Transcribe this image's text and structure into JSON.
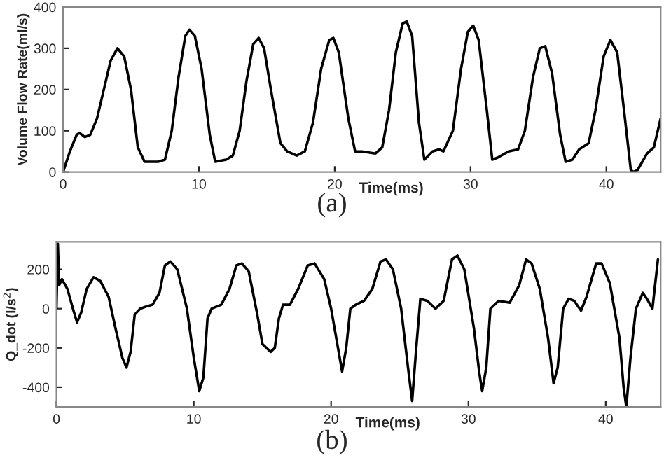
{
  "chart_data": [
    {
      "type": "line",
      "xlabel": "Time(ms)",
      "ylabel": "Volume Flow Rate(ml/s)",
      "xlim": [
        0,
        44
      ],
      "ylim": [
        0,
        400
      ],
      "xticks": [
        0,
        10,
        20,
        30,
        40
      ],
      "yticks": [
        0,
        100,
        200,
        300,
        400
      ],
      "grid": false,
      "legend": false,
      "annotations": [
        "(a)"
      ],
      "series": [
        {
          "color": "#000000",
          "x": [
            0,
            0.5,
            1,
            1.2,
            1.6,
            2,
            2.5,
            3,
            3.5,
            4,
            4.5,
            5,
            5.5,
            6,
            7,
            7.5,
            8,
            8.5,
            9,
            9.3,
            9.7,
            10.2,
            10.8,
            11.2,
            12,
            12.5,
            13,
            13.5,
            14,
            14.4,
            14.8,
            15.3,
            16,
            16.5,
            17.2,
            17.8,
            18.4,
            19,
            19.6,
            19.9,
            20.3,
            21,
            21.5,
            22,
            23,
            23.5,
            24,
            24.5,
            25,
            25.3,
            25.7,
            26.2,
            26.6,
            27.2,
            27.7,
            28,
            28.7,
            29.3,
            29.8,
            30.2,
            30.6,
            31.2,
            31.6,
            32,
            32.8,
            33.5,
            34,
            34.6,
            35.1,
            35.5,
            36,
            36.6,
            37,
            37.5,
            38,
            38.7,
            39.2,
            39.8,
            40.3,
            40.8,
            41.3,
            41.8,
            42,
            42.3,
            43,
            43.5,
            44
          ],
          "values": [
            0,
            50,
            90,
            95,
            85,
            90,
            130,
            200,
            270,
            300,
            280,
            200,
            60,
            25,
            25,
            30,
            100,
            230,
            330,
            345,
            330,
            250,
            90,
            25,
            30,
            40,
            100,
            220,
            310,
            325,
            300,
            200,
            70,
            50,
            40,
            50,
            120,
            250,
            320,
            325,
            290,
            130,
            50,
            50,
            45,
            60,
            150,
            290,
            360,
            365,
            330,
            120,
            30,
            50,
            55,
            50,
            100,
            250,
            340,
            355,
            320,
            150,
            30,
            35,
            50,
            55,
            100,
            230,
            300,
            305,
            240,
            90,
            25,
            30,
            55,
            70,
            150,
            280,
            320,
            290,
            150,
            5,
            0,
            5,
            45,
            60,
            130
          ]
        }
      ]
    },
    {
      "type": "line",
      "xlabel": "Time(ms)",
      "ylabel": "Q_dot (l/s$^{2}$)",
      "xlim": [
        0,
        44
      ],
      "ylim": [
        -500,
        340
      ],
      "xticks": [
        0,
        10,
        20,
        30,
        40
      ],
      "yticks": [
        -400,
        -200,
        0,
        200
      ],
      "grid": false,
      "legend": false,
      "annotations": [
        "(b)"
      ],
      "series": [
        {
          "color": "#000000",
          "x": [
            0,
            0.1,
            0.2,
            0.4,
            0.8,
            1.2,
            1.5,
            1.8,
            2.2,
            2.7,
            3.2,
            3.8,
            4.3,
            4.8,
            5.1,
            5.4,
            5.7,
            6.1,
            6.5,
            7,
            7.5,
            7.9,
            8.3,
            8.8,
            9.5,
            10,
            10.4,
            10.7,
            11,
            11.3,
            12,
            12.6,
            13.1,
            13.5,
            14,
            14.6,
            15,
            15.6,
            15.9,
            16.2,
            16.5,
            17,
            17.6,
            18.3,
            18.8,
            19.5,
            20,
            20.5,
            20.8,
            21.1,
            21.4,
            21.8,
            22.4,
            23,
            23.6,
            24,
            24.5,
            25.1,
            25.6,
            25.9,
            26.2,
            26.5,
            27,
            27.6,
            28.2,
            28.8,
            29.2,
            29.7,
            30.4,
            30.8,
            31,
            31.3,
            31.6,
            32.2,
            33,
            33.7,
            34.2,
            34.6,
            35.2,
            35.8,
            36.2,
            36.5,
            36.9,
            37.3,
            37.7,
            38.2,
            38.6,
            39.3,
            39.7,
            40.3,
            41,
            41.3,
            41.5,
            41.8,
            42.2,
            42.7,
            43,
            43.4,
            43.8
          ],
          "values": [
            0,
            330,
            120,
            150,
            100,
            0,
            -70,
            -20,
            100,
            160,
            140,
            60,
            -100,
            -250,
            -300,
            -220,
            -30,
            0,
            10,
            20,
            80,
            220,
            240,
            200,
            0,
            -250,
            -420,
            -350,
            -50,
            0,
            20,
            100,
            220,
            230,
            190,
            -20,
            -180,
            -220,
            -200,
            -50,
            20,
            20,
            100,
            220,
            230,
            150,
            0,
            -200,
            -320,
            -200,
            0,
            20,
            40,
            100,
            240,
            250,
            200,
            0,
            -300,
            -470,
            -200,
            50,
            40,
            0,
            40,
            250,
            270,
            200,
            -100,
            -330,
            -420,
            -300,
            0,
            40,
            30,
            120,
            250,
            230,
            100,
            -150,
            -380,
            -300,
            0,
            50,
            40,
            -10,
            60,
            230,
            230,
            130,
            -150,
            -400,
            -500,
            -250,
            0,
            80,
            50,
            0,
            250
          ]
        }
      ]
    }
  ]
}
